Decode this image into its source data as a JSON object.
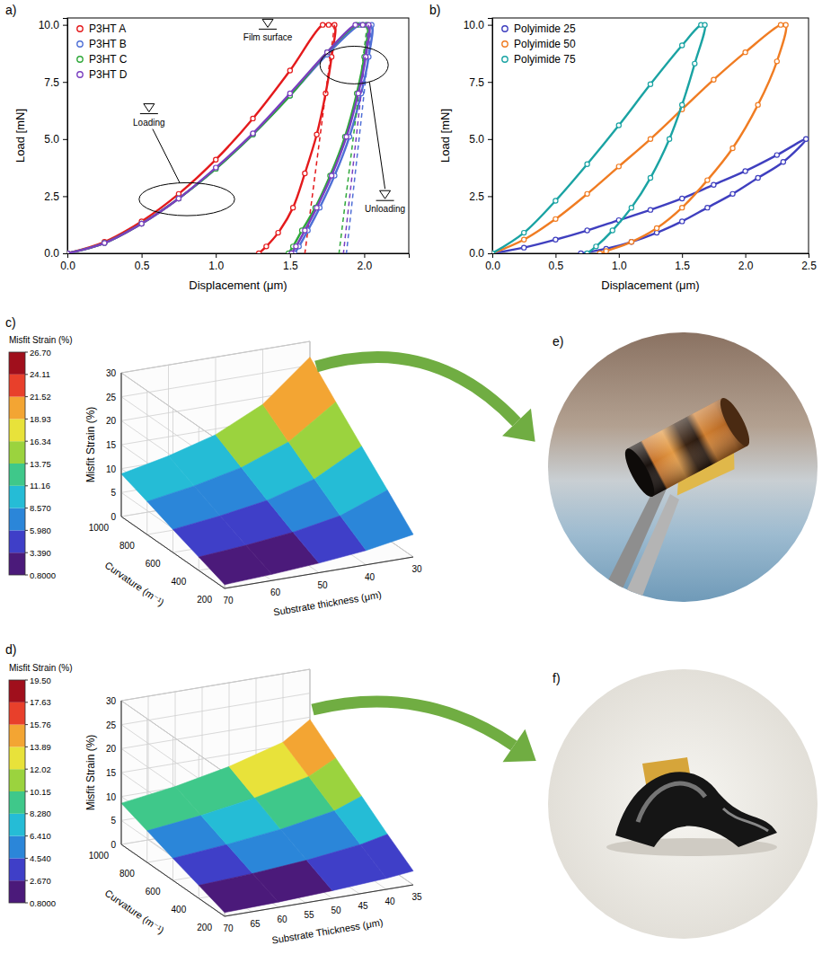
{
  "chart_data": [
    {
      "type": "line",
      "panel": "a)",
      "x_label": "Displacement (μm)",
      "y_label": "Load [mN]",
      "xlim": [
        0,
        2.3
      ],
      "ylim": [
        0,
        10.3
      ],
      "xticks": [
        {
          "value": 0,
          "label": "0.0"
        },
        0.5,
        {
          "value": 1,
          "label": "1.0"
        },
        1.5,
        {
          "value": 2,
          "label": "2.0"
        }
      ],
      "yticks": [
        {
          "value": 0,
          "label": "0.0"
        },
        2.5,
        {
          "value": 5,
          "label": "5.0"
        },
        7.5,
        {
          "value": 10,
          "label": "10.0"
        }
      ],
      "legend": "upper left",
      "marker": "circle",
      "series": [
        {
          "name": "P3HT A",
          "color": "#e41a1c",
          "x": [
            0,
            0.25,
            0.5,
            0.75,
            1.0,
            1.25,
            1.5,
            1.72,
            1.76,
            1.8,
            1.78,
            1.74,
            1.68,
            1.6,
            1.52,
            1.42,
            1.34,
            1.29
          ],
          "values": [
            0,
            0.5,
            1.4,
            2.6,
            4.1,
            5.9,
            8.0,
            10.0,
            10.0,
            10.0,
            8.6,
            7.0,
            5.2,
            3.5,
            2.0,
            0.9,
            0.3,
            0
          ],
          "tangent": {
            "x": [
              1.8,
              1.6
            ],
            "values": [
              10,
              0
            ],
            "line_style": "dashed"
          }
        },
        {
          "name": "P3HT B",
          "color": "#4f6fd6",
          "x": [
            0,
            0.25,
            0.5,
            0.75,
            1.0,
            1.25,
            1.5,
            1.75,
            1.97,
            2.01,
            2.05,
            2.03,
            1.98,
            1.9,
            1.8,
            1.7,
            1.62,
            1.56,
            1.53
          ],
          "values": [
            0,
            0.45,
            1.3,
            2.4,
            3.7,
            5.2,
            6.9,
            8.7,
            10.0,
            10.0,
            10.0,
            8.6,
            7.0,
            5.1,
            3.4,
            2.0,
            1.0,
            0.3,
            0
          ],
          "tangent": {
            "x": [
              2.05,
              1.88
            ],
            "values": [
              10,
              0
            ],
            "line_style": "dashed"
          }
        },
        {
          "name": "P3HT C",
          "color": "#2fa83a",
          "x": [
            0,
            0.25,
            0.5,
            0.75,
            1.0,
            1.25,
            1.5,
            1.75,
            1.95,
            1.99,
            2.02,
            2.0,
            1.95,
            1.87,
            1.77,
            1.67,
            1.58,
            1.52,
            1.49
          ],
          "values": [
            0,
            0.45,
            1.3,
            2.4,
            3.7,
            5.2,
            6.9,
            8.8,
            10.0,
            10.0,
            10.0,
            8.6,
            7.0,
            5.1,
            3.4,
            2.0,
            1.0,
            0.3,
            0
          ],
          "tangent": {
            "x": [
              2.02,
              1.83
            ],
            "values": [
              10,
              0
            ],
            "line_style": "dashed"
          }
        },
        {
          "name": "P3HT D",
          "color": "#7a3fc0",
          "x": [
            0,
            0.25,
            0.5,
            0.75,
            1.0,
            1.25,
            1.5,
            1.75,
            1.94,
            1.99,
            2.03,
            2.01,
            1.96,
            1.88,
            1.78,
            1.68,
            1.6,
            1.54,
            1.51
          ],
          "values": [
            0,
            0.45,
            1.3,
            2.4,
            3.75,
            5.25,
            7.0,
            8.8,
            10.0,
            10.0,
            10.0,
            8.6,
            7.0,
            5.1,
            3.4,
            2.0,
            1.0,
            0.3,
            0
          ],
          "tangent": {
            "x": [
              2.03,
              1.86
            ],
            "values": [
              10,
              0
            ],
            "line_style": "dashed"
          }
        }
      ],
      "annotations": [
        {
          "text": "Film surface",
          "x": 1.35,
          "y": 9.3
        },
        {
          "text": "Loading",
          "x": 0.55,
          "y": 5.6
        },
        {
          "text": "Unloading",
          "x": 2.14,
          "y": 1.8
        }
      ]
    },
    {
      "type": "line",
      "panel": "b)",
      "x_label": "Displacement (μm)",
      "y_label": "Load [mN]",
      "xlim": [
        0,
        2.5
      ],
      "ylim": [
        0,
        10.3
      ],
      "xticks": [
        {
          "value": 0,
          "label": "0.0"
        },
        0.5,
        {
          "value": 1,
          "label": "1.0"
        },
        1.5,
        {
          "value": 2,
          "label": "2.0"
        },
        2.5
      ],
      "yticks": [
        {
          "value": 0,
          "label": "0.0"
        },
        2.5,
        {
          "value": 5,
          "label": "5.0"
        },
        7.5,
        {
          "value": 10,
          "label": "10.0"
        }
      ],
      "legend": "upper left",
      "marker": "circle",
      "series": [
        {
          "name": "Polyimide 25",
          "color": "#3f3fbf",
          "x": [
            0,
            0.25,
            0.5,
            0.75,
            1.0,
            1.25,
            1.5,
            1.75,
            2.0,
            2.25,
            2.48,
            2.3,
            2.1,
            1.9,
            1.7,
            1.5,
            1.3,
            1.1,
            0.9,
            0.7
          ],
          "values": [
            0,
            0.25,
            0.6,
            1.0,
            1.45,
            1.9,
            2.4,
            3.0,
            3.6,
            4.3,
            5.0,
            4.0,
            3.3,
            2.6,
            2.0,
            1.4,
            0.9,
            0.5,
            0.2,
            0
          ]
        },
        {
          "name": "Polyimide 50",
          "color": "#f07c22",
          "x": [
            0,
            0.25,
            0.5,
            0.75,
            1.0,
            1.25,
            1.5,
            1.75,
            2.0,
            2.28,
            2.32,
            2.25,
            2.1,
            1.9,
            1.7,
            1.5,
            1.3,
            1.1,
            0.9,
            0.85
          ],
          "values": [
            0,
            0.6,
            1.5,
            2.6,
            3.8,
            5.0,
            6.3,
            7.6,
            8.8,
            10.0,
            10.0,
            8.4,
            6.5,
            4.6,
            3.2,
            2.0,
            1.1,
            0.5,
            0.1,
            0
          ]
        },
        {
          "name": "Polyimide 75",
          "color": "#1aa3a3",
          "x": [
            0,
            0.25,
            0.5,
            0.75,
            1.0,
            1.25,
            1.5,
            1.65,
            1.68,
            1.6,
            1.5,
            1.4,
            1.25,
            1.1,
            0.95,
            0.82,
            0.75
          ],
          "values": [
            0,
            0.9,
            2.3,
            3.9,
            5.6,
            7.4,
            9.1,
            10.0,
            10.0,
            8.3,
            6.5,
            5.0,
            3.3,
            2.0,
            1.0,
            0.3,
            0
          ]
        }
      ]
    },
    {
      "type": "surface",
      "panel": "c)",
      "x_label": "Substrate thickness (μm)",
      "y_label": "Curvature (m⁻¹)",
      "z_label": "Misfit Strain (%)",
      "x": [
        70,
        60,
        50,
        40,
        30
      ],
      "y": [
        200,
        400,
        600,
        800,
        1000
      ],
      "z": [
        [
          0.8,
          1.3,
          2.0,
          3.0,
          4.7
        ],
        [
          2.8,
          3.6,
          4.7,
          6.5,
          10.2
        ],
        [
          4.8,
          6.0,
          7.6,
          10.4,
          15.6
        ],
        [
          6.9,
          8.5,
          10.7,
          14.4,
          21.1
        ],
        [
          8.9,
          11.0,
          13.8,
          18.5,
          26.7
        ]
      ],
      "xlim": [
        70,
        30
      ],
      "xticks": [
        70,
        60,
        50,
        40,
        30
      ],
      "ylim": [
        200,
        1000
      ],
      "yticks": [
        200,
        400,
        600,
        800,
        1000
      ],
      "zlim": [
        0,
        30
      ],
      "zticks": [
        0,
        5,
        10,
        15,
        20,
        25,
        30
      ],
      "grid": true,
      "colorbar": {
        "title": "Misfit Strain (%)",
        "range": [
          0.8,
          26.7
        ],
        "ticks": [
          {
            "value": 0.8,
            "label": "0.8000"
          },
          {
            "value": 3.39,
            "label": "3.390"
          },
          {
            "value": 5.98,
            "label": "5.980"
          },
          {
            "value": 8.57,
            "label": "8.570"
          },
          11.16,
          13.75,
          16.34,
          18.93,
          21.52,
          24.11,
          {
            "value": 26.7,
            "label": "26.70"
          }
        ],
        "colors": [
          "#4b1a7a",
          "#3f3fc8",
          "#2b86d9",
          "#25bcd6",
          "#3fc88a",
          "#9bd33e",
          "#e8e23a",
          "#f3a533",
          "#e8402b",
          "#a00f1c"
        ]
      }
    },
    {
      "type": "surface",
      "panel": "d)",
      "x_label": "Substrate Thickness (μm)",
      "y_label": "Curvature (m⁻¹)",
      "z_label": "Misfit Strain (%)",
      "x": [
        70,
        60,
        50,
        40,
        35
      ],
      "y": [
        200,
        400,
        600,
        800,
        1000
      ],
      "z": [
        [
          0.8,
          1.1,
          1.6,
          2.3,
          2.9
        ],
        [
          2.7,
          3.3,
          4.2,
          5.6,
          6.8
        ],
        [
          4.6,
          5.6,
          6.9,
          8.9,
          11.0
        ],
        [
          6.6,
          7.9,
          9.7,
          12.3,
          15.2
        ],
        [
          8.6,
          10.2,
          12.5,
          15.7,
          19.5
        ]
      ],
      "xlim": [
        70,
        35
      ],
      "xticks": [
        70,
        65,
        60,
        55,
        50,
        45,
        40,
        35
      ],
      "ylim": [
        200,
        1000
      ],
      "yticks": [
        200,
        400,
        600,
        800,
        1000
      ],
      "zlim": [
        0,
        30
      ],
      "zticks": [
        0,
        5,
        10,
        15,
        20,
        25,
        30
      ],
      "grid": true,
      "colorbar": {
        "title": "Misfit Strain (%)",
        "range": [
          0.8,
          19.5
        ],
        "ticks": [
          {
            "value": 0.8,
            "label": "0.8000"
          },
          {
            "value": 2.67,
            "label": "2.670"
          },
          {
            "value": 4.54,
            "label": "4.540"
          },
          {
            "value": 6.41,
            "label": "6.410"
          },
          {
            "value": 8.28,
            "label": "8.280"
          },
          10.15,
          12.02,
          13.89,
          15.76,
          17.63,
          {
            "value": 19.5,
            "label": "19.50"
          }
        ],
        "colors": [
          "#4b1a7a",
          "#3f3fc8",
          "#2b86d9",
          "#25bcd6",
          "#3fc88a",
          "#9bd33e",
          "#e8e23a",
          "#f3a533",
          "#e8402b",
          "#a00f1c"
        ]
      }
    }
  ],
  "images": [
    {
      "panel": "e)"
    },
    {
      "panel": "f)"
    }
  ]
}
